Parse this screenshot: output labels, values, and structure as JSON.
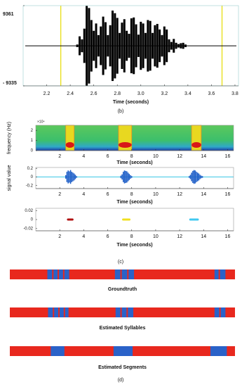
{
  "chart_data": [
    {
      "type": "waveform",
      "xlim": [
        2.0,
        3.83
      ],
      "xticks": [
        2.2,
        2.4,
        2.6,
        2.8,
        {
          "value": 3,
          "label": "3.0"
        },
        3.2,
        3.4,
        3.6,
        3.8
      ],
      "x_label": "Time (seconds)",
      "ylim": [
        -9335,
        9361
      ],
      "yticks": [
        9361,
        {
          "value": -9335,
          "label": "- 9335"
        }
      ],
      "markers": [
        2.32,
        3.69
      ],
      "marker_color": "#e6dc00",
      "color": "#000000",
      "x": [
        2.46,
        2.48,
        2.5,
        2.52,
        2.54,
        2.56,
        2.58,
        2.6,
        2.62,
        2.64,
        2.66,
        2.68,
        2.7,
        2.72,
        2.74,
        2.76,
        2.78,
        2.8,
        2.82,
        2.84,
        2.86,
        2.88,
        2.9,
        2.92,
        2.94,
        2.96,
        2.98,
        3.0,
        3.02,
        3.04,
        3.06,
        3.08,
        3.1,
        3.12,
        3.14,
        3.16,
        3.18,
        3.2,
        3.22,
        3.24,
        3.26,
        3.28,
        3.3,
        3.32,
        3.34,
        3.36,
        3.38
      ],
      "values": [
        300,
        2200,
        1500,
        4000,
        9300,
        8800,
        6000,
        3500,
        5200,
        2500,
        4500,
        6800,
        5500,
        2500,
        4800,
        8200,
        7600,
        6500,
        3000,
        5400,
        6200,
        3500,
        2800,
        6400,
        6600,
        5000,
        2600,
        5600,
        5200,
        3000,
        6000,
        5800,
        3000,
        4800,
        5100,
        3800,
        2500,
        4500,
        3800,
        1500,
        900,
        1600,
        700,
        400,
        600,
        700,
        300
      ]
    },
    {
      "type": "heatmap",
      "y_label": "frequency (Hz)",
      "scale_label": "×10⁴",
      "xlim": [
        0,
        16.5
      ],
      "xticks": [
        2,
        4,
        6,
        8,
        10,
        12,
        14,
        16
      ],
      "x_label": "Time (seconds)",
      "ylim": [
        0,
        2.5
      ],
      "yticks": [
        0,
        1,
        2
      ],
      "intervals": [
        [
          2.5,
          3.2
        ],
        [
          6.9,
          8.0
        ],
        [
          13.0,
          13.8
        ]
      ]
    },
    {
      "type": "waveform",
      "y_label": "signal value",
      "xlim": [
        0,
        16.5
      ],
      "xticks": [
        2,
        4,
        6,
        8,
        10,
        12,
        14,
        16
      ],
      "x_label": "Time (seconds)",
      "ylim": [
        -0.27,
        0.22
      ],
      "yticks": [
        0.2,
        0,
        -0.2
      ],
      "color": "#1f5fc8",
      "baseline_color": "#3cc8e6",
      "x": [
        2.5,
        2.6,
        2.7,
        2.8,
        2.9,
        3.0,
        3.1,
        3.2,
        3.3,
        3.4,
        7.1,
        7.2,
        7.3,
        7.4,
        7.5,
        7.6,
        7.7,
        7.8,
        7.9,
        8.0,
        12.8,
        12.9,
        13.0,
        13.1,
        13.2,
        13.3,
        13.4,
        13.5,
        13.6,
        13.7,
        13.8,
        13.9
      ],
      "values": [
        0.04,
        0.12,
        0.15,
        0.13,
        0.16,
        0.12,
        0.1,
        0.08,
        0.05,
        0.02,
        0.03,
        0.06,
        0.12,
        0.15,
        0.14,
        0.13,
        0.1,
        0.07,
        0.04,
        0.02,
        0.02,
        0.05,
        0.1,
        0.14,
        0.16,
        0.15,
        0.12,
        0.1,
        0.08,
        0.05,
        0.03,
        0.02
      ]
    },
    {
      "type": "intervals",
      "xlim": [
        0,
        16.5
      ],
      "xticks": [
        2,
        4,
        6,
        8,
        10,
        12,
        14,
        16
      ],
      "x_label": "Time (seconds)",
      "ylim": [
        -0.025,
        0.025
      ],
      "yticks": [
        0.02,
        0,
        -0.02
      ],
      "intervals": [
        [
          2.6,
          3.15
        ],
        [
          7.2,
          7.9
        ],
        [
          12.8,
          13.6
        ]
      ],
      "colors": [
        "#b01010",
        "#f0e020",
        "#40c8f0"
      ]
    },
    {
      "type": "segments",
      "label": "Groundtruth",
      "xlim": [
        0,
        16.5
      ],
      "color": "#e8281e",
      "segment_color": "#2a62c8",
      "segments": [
        [
          2.75,
          3.1
        ],
        [
          3.2,
          3.5
        ],
        [
          3.6,
          3.9
        ],
        [
          4.0,
          4.35
        ],
        [
          7.7,
          8.1
        ],
        [
          8.2,
          8.6
        ],
        [
          8.7,
          9.1
        ],
        [
          15.0,
          15.3
        ],
        [
          15.4,
          15.8
        ]
      ]
    },
    {
      "type": "segments",
      "label": "Estimated Syllables",
      "xlim": [
        0,
        16.5
      ],
      "color": "#e8281e",
      "segment_color": "#2a62c8",
      "segments": [
        [
          2.8,
          3.15
        ],
        [
          3.25,
          3.55
        ],
        [
          3.65,
          3.95
        ],
        [
          4.05,
          4.3
        ],
        [
          7.75,
          8.1
        ],
        [
          8.2,
          8.55
        ],
        [
          8.65,
          9.05
        ],
        [
          15.0,
          15.35
        ],
        [
          15.45,
          15.8
        ]
      ]
    },
    {
      "type": "segments",
      "label": "Estimated Segments",
      "xlim": [
        0,
        16.5
      ],
      "color": "#e8281e",
      "segment_color": "#2a62c8",
      "segments": [
        [
          3.0,
          4.0
        ],
        [
          7.6,
          9.0
        ],
        [
          14.7,
          15.9
        ]
      ]
    }
  ],
  "captions": [
    "(b)",
    "(c)",
    "(d)"
  ]
}
